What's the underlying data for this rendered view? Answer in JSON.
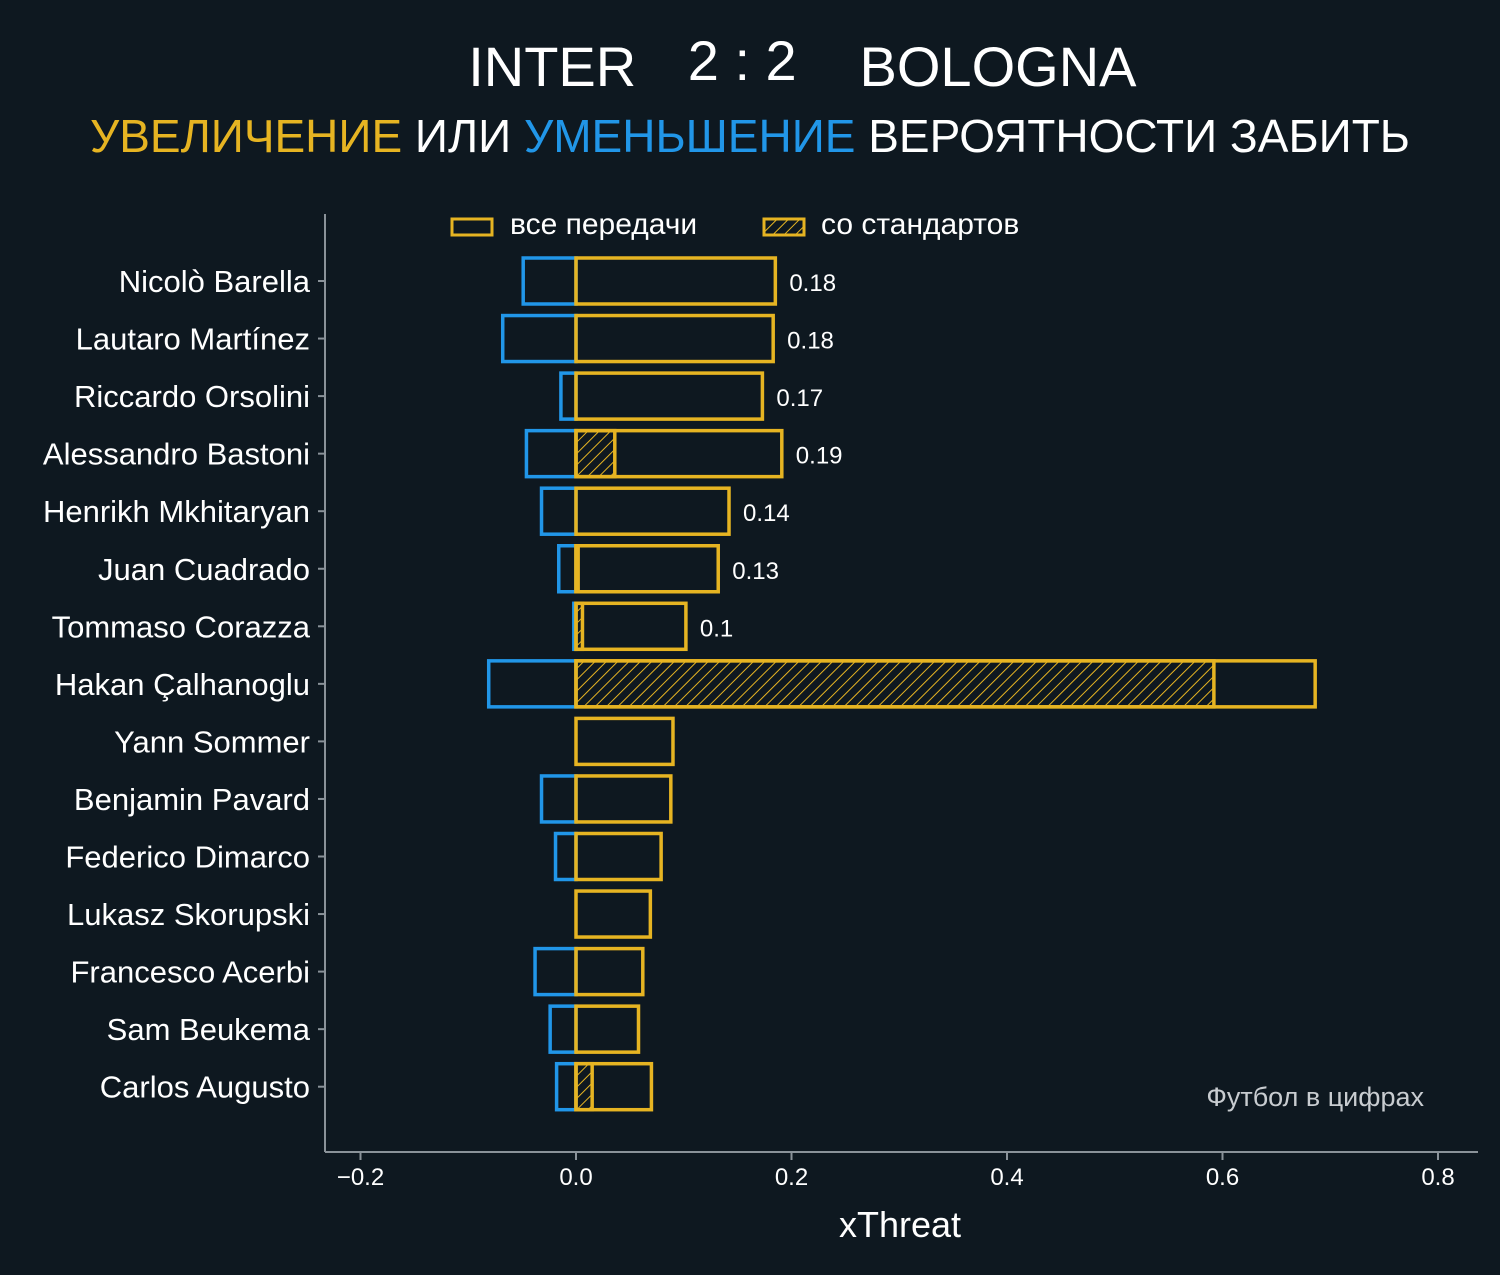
{
  "header": {
    "home_team": "INTER",
    "score": "2 : 2",
    "away_team": "BOLOGNA",
    "subtitle_parts": [
      {
        "text": "УВЕЛИЧЕНИЕ",
        "color": "#e6b422"
      },
      {
        "text": " ИЛИ ",
        "color": "#ffffff"
      },
      {
        "text": "УМЕНЬШЕНИЕ",
        "color": "#2196e8"
      },
      {
        "text": " ВЕРОЯТНОСТИ ЗАБИТЬ",
        "color": "#ffffff"
      }
    ]
  },
  "watermark": "Футбол в цифрах",
  "colors": {
    "background": "#0e1820",
    "positive": "#e6b422",
    "negative": "#2196e8",
    "text": "#ffffff",
    "axis": "#8a9299",
    "watermark": "#c8ccd0"
  },
  "chart_data": {
    "type": "bar",
    "orientation": "horizontal",
    "xlabel": "xThreat",
    "xlim": [
      -0.23,
      0.84
    ],
    "xticks": [
      -0.2,
      0.0,
      0.2,
      0.4,
      0.6,
      0.8
    ],
    "xtick_labels": [
      "−0.2",
      "0.0",
      "0.2",
      "0.4",
      "0.6",
      "0.8"
    ],
    "legend": {
      "position": "top",
      "items": [
        {
          "label": "все передачи",
          "style": "outline"
        },
        {
          "label": "со стандартов",
          "style": "hatched"
        }
      ]
    },
    "grid": false,
    "categories": [
      "Nicolò Barella",
      "Lautaro Martínez",
      "Riccardo Orsolini",
      "Alessandro Bastoni",
      "Henrikh Mkhitaryan",
      "Juan Cuadrado",
      "Tommaso Corazza",
      "Hakan Çalhanoglu",
      "Yann Sommer",
      "Benjamin Pavard",
      "Federico Dimarco",
      "Lukasz Skorupski",
      "Francesco Acerbi",
      "Sam Beukema",
      "Carlos Augusto"
    ],
    "series": [
      {
        "name": "все передачи",
        "values": [
          0.185,
          0.183,
          0.173,
          0.191,
          0.142,
          0.132,
          0.102,
          0.686,
          0.09,
          0.088,
          0.079,
          0.069,
          0.062,
          0.058,
          0.07
        ]
      },
      {
        "name": "со стандартов",
        "values": [
          0,
          0,
          0,
          0.036,
          0,
          0.002,
          0.006,
          0.592,
          0,
          0,
          0,
          0,
          0,
          0,
          0.015
        ]
      },
      {
        "values": [
          -0.049,
          -0.068,
          -0.014,
          -0.046,
          -0.032,
          -0.016,
          -0.002,
          -0.081,
          0,
          -0.032,
          -0.019,
          0,
          -0.038,
          -0.024,
          -0.018
        ]
      }
    ],
    "data_labels": [
      "0.18",
      "0.18",
      "0.17",
      "0.19",
      "0.14",
      "0.13",
      "0.1",
      "",
      "",
      "",
      "",
      "",
      "",
      "",
      ""
    ]
  }
}
